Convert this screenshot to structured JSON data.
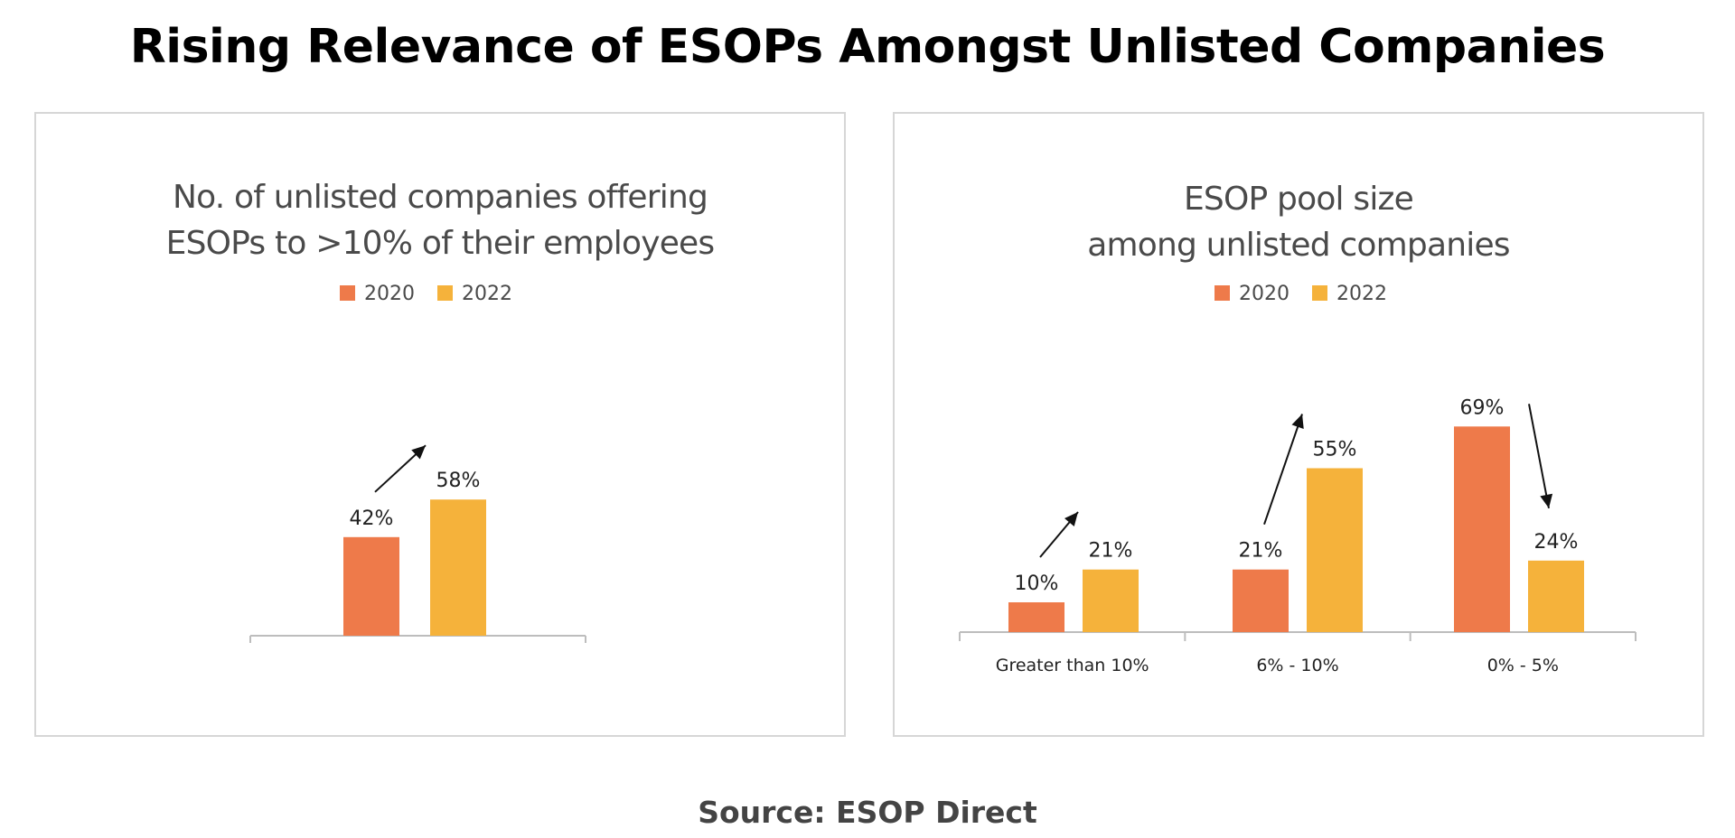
{
  "page": {
    "title": "Rising Relevance of ESOPs Amongst Unlisted Companies",
    "source": "Source: ESOP Direct"
  },
  "colors": {
    "s2020": "#EE7A4A",
    "s2022": "#F5B23B",
    "text": "#4a4a4a",
    "axis": "#bdbdbd"
  },
  "chart_data": [
    {
      "type": "bar",
      "title_lines": [
        "No. of unlisted companies offering",
        "ESOPs to >10% of their employees"
      ],
      "categories": [
        ""
      ],
      "series": [
        {
          "name": "2020",
          "values": [
            42
          ]
        },
        {
          "name": "2022",
          "values": [
            58
          ]
        }
      ],
      "value_suffix": "%",
      "trend_arrows": [
        "up"
      ],
      "legend": "top-center",
      "grid": false
    },
    {
      "type": "bar",
      "title_lines": [
        "ESOP pool size",
        "among unlisted companies"
      ],
      "categories": [
        "Greater than 10%",
        "6% - 10%",
        "0% - 5%"
      ],
      "series": [
        {
          "name": "2020",
          "values": [
            10,
            21,
            69
          ]
        },
        {
          "name": "2022",
          "values": [
            21,
            55,
            24
          ]
        }
      ],
      "value_suffix": "%",
      "trend_arrows": [
        "up",
        "up",
        "down"
      ],
      "legend": "top-center",
      "grid": false
    }
  ]
}
